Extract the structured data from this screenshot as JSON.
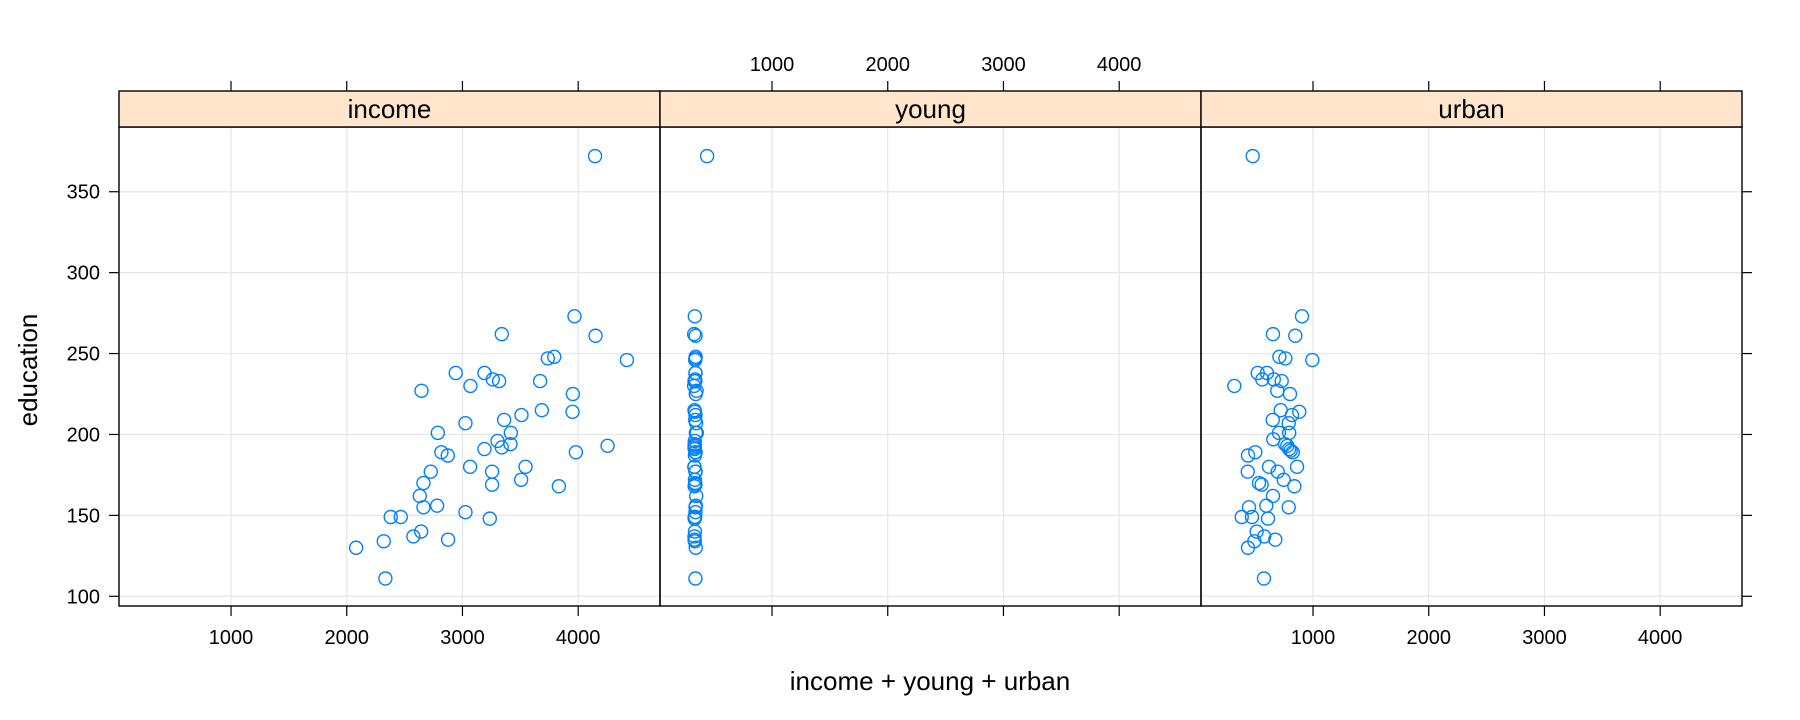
{
  "chart_data": {
    "type": "scatter",
    "layout": "trellis-1x3",
    "title": "",
    "xlabel": "income + young + urban",
    "ylabel": "education",
    "xlim": [
      32,
      4707
    ],
    "ylim": [
      94,
      390
    ],
    "x_ticks": [
      1000,
      2000,
      3000,
      4000
    ],
    "y_ticks": [
      100,
      150,
      200,
      250,
      300,
      350
    ],
    "grid": true,
    "marker": "open-circle",
    "marker_color": "#0080FF",
    "strip_color": "#FFE5CC",
    "panels": [
      {
        "name": "income",
        "points": [
          [
            2081,
            130
          ],
          [
            2334,
            111
          ],
          [
            2320,
            134
          ],
          [
            2380,
            149
          ],
          [
            2467,
            149
          ],
          [
            2576,
            137
          ],
          [
            2643,
            140
          ],
          [
            2663,
            155
          ],
          [
            2631,
            162
          ],
          [
            2663,
            170
          ],
          [
            2726,
            177
          ],
          [
            2646,
            227
          ],
          [
            2781,
            156
          ],
          [
            2787,
            201
          ],
          [
            2818,
            189
          ],
          [
            2873,
            187
          ],
          [
            2876,
            135
          ],
          [
            2942,
            238
          ],
          [
            3069,
            230
          ],
          [
            3026,
            207
          ],
          [
            3026,
            152
          ],
          [
            3066,
            180
          ],
          [
            3190,
            238
          ],
          [
            3262,
            234
          ],
          [
            3317,
            233
          ],
          [
            3190,
            191
          ],
          [
            3256,
            177
          ],
          [
            3256,
            169
          ],
          [
            3236,
            148
          ],
          [
            3340,
            262
          ],
          [
            3303,
            196
          ],
          [
            3340,
            192
          ],
          [
            3360,
            209
          ],
          [
            3418,
            201
          ],
          [
            3415,
            194
          ],
          [
            3510,
            212
          ],
          [
            3545,
            180
          ],
          [
            3507,
            172
          ],
          [
            3671,
            233
          ],
          [
            3686,
            215
          ],
          [
            3738,
            247
          ],
          [
            3793,
            248
          ],
          [
            3833,
            168
          ],
          [
            3954,
            225
          ],
          [
            3951,
            214
          ],
          [
            3980,
            189
          ],
          [
            3968,
            273
          ],
          [
            4150,
            261
          ],
          [
            4254,
            193
          ],
          [
            4421,
            246
          ],
          [
            4146,
            372
          ]
        ]
      },
      {
        "name": "young",
        "points": [
          [
            341,
            130
          ],
          [
            338,
            111
          ],
          [
            333,
            134
          ],
          [
            331,
            149
          ],
          [
            336,
            149
          ],
          [
            330,
            137
          ],
          [
            334,
            140
          ],
          [
            339,
            155
          ],
          [
            345,
            162
          ],
          [
            336,
            170
          ],
          [
            338,
            177
          ],
          [
            348,
            227
          ],
          [
            342,
            156
          ],
          [
            350,
            201
          ],
          [
            337,
            189
          ],
          [
            334,
            187
          ],
          [
            331,
            135
          ],
          [
            338,
            238
          ],
          [
            327,
            230
          ],
          [
            344,
            207
          ],
          [
            339,
            152
          ],
          [
            330,
            180
          ],
          [
            339,
            238
          ],
          [
            336,
            234
          ],
          [
            330,
            233
          ],
          [
            332,
            191
          ],
          [
            340,
            177
          ],
          [
            338,
            169
          ],
          [
            332,
            148
          ],
          [
            327,
            262
          ],
          [
            333,
            196
          ],
          [
            330,
            192
          ],
          [
            336,
            209
          ],
          [
            342,
            201
          ],
          [
            331,
            194
          ],
          [
            339,
            212
          ],
          [
            329,
            180
          ],
          [
            334,
            172
          ],
          [
            337,
            233
          ],
          [
            330,
            215
          ],
          [
            338,
            247
          ],
          [
            340,
            248
          ],
          [
            331,
            168
          ],
          [
            341,
            225
          ],
          [
            334,
            214
          ],
          [
            340,
            189
          ],
          [
            333,
            273
          ],
          [
            340,
            261
          ],
          [
            333,
            193
          ],
          [
            336,
            246
          ],
          [
            439,
            372
          ]
        ]
      },
      {
        "name": "urban",
        "points": [
          [
            438,
            130
          ],
          [
            576,
            111
          ],
          [
            493,
            134
          ],
          [
            384,
            149
          ],
          [
            473,
            149
          ],
          [
            579,
            137
          ],
          [
            513,
            140
          ],
          [
            447,
            155
          ],
          [
            654,
            162
          ],
          [
            533,
            170
          ],
          [
            436,
            177
          ],
          [
            691,
            227
          ],
          [
            596,
            156
          ],
          [
            706,
            201
          ],
          [
            501,
            189
          ],
          [
            438,
            187
          ],
          [
            674,
            135
          ],
          [
            522,
            238
          ],
          [
            320,
            230
          ],
          [
            790,
            207
          ],
          [
            790,
            155
          ],
          [
            620,
            180
          ],
          [
            602,
            238
          ],
          [
            562,
            234
          ],
          [
            661,
            234
          ],
          [
            793,
            191
          ],
          [
            695,
            177
          ],
          [
            556,
            169
          ],
          [
            611,
            148
          ],
          [
            654,
            262
          ],
          [
            657,
            197
          ],
          [
            758,
            194
          ],
          [
            652,
            209
          ],
          [
            794,
            201
          ],
          [
            778,
            193
          ],
          [
            818,
            212
          ],
          [
            862,
            180
          ],
          [
            746,
            172
          ],
          [
            729,
            233
          ],
          [
            721,
            215
          ],
          [
            761,
            247
          ],
          [
            709,
            248
          ],
          [
            839,
            168
          ],
          [
            801,
            225
          ],
          [
            881,
            214
          ],
          [
            825,
            189
          ],
          [
            905,
            273
          ],
          [
            847,
            261
          ],
          [
            807,
            190
          ],
          [
            994,
            246
          ],
          [
            479,
            372
          ]
        ]
      }
    ]
  },
  "axes": {
    "x_title": "income + young + urban",
    "y_title": "education",
    "x_tick_labels": [
      "1000",
      "2000",
      "3000",
      "4000"
    ],
    "y_tick_labels": [
      "100",
      "150",
      "200",
      "250",
      "300",
      "350"
    ]
  },
  "strips": [
    "income",
    "young",
    "urban"
  ]
}
